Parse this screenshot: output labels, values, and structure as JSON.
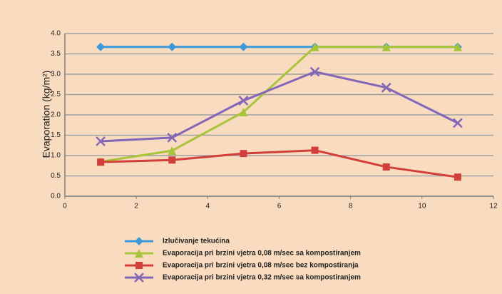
{
  "chart_data": {
    "type": "line",
    "ylabel": "Evaporation (kg/m²)",
    "x": [
      1,
      3,
      5,
      7,
      9,
      11
    ],
    "xlim": [
      0,
      12
    ],
    "xticks": [
      0,
      2,
      4,
      6,
      8,
      10,
      12
    ],
    "ylim": [
      0,
      4
    ],
    "yticks": [
      {
        "value": 0,
        "label": "0.0"
      },
      {
        "value": 0.5,
        "label": "0.5"
      },
      {
        "value": 1,
        "label": "1.0"
      },
      {
        "value": 1.5,
        "label": "1.5"
      },
      {
        "value": 2,
        "label": "2.0"
      },
      {
        "value": 2.5,
        "label": "2.5"
      },
      {
        "value": 3,
        "label": "3.0"
      },
      {
        "value": 3.5,
        "label": "3.5"
      },
      {
        "value": 4,
        "label": "4.0"
      }
    ],
    "grid": true,
    "legend": "bottom",
    "series": [
      {
        "name": "Izlučivanje tekućina",
        "color": "#3d9ad9",
        "marker": "diamond",
        "values": [
          3.67,
          3.67,
          3.67,
          3.67,
          3.67,
          3.67
        ]
      },
      {
        "name": "Evaporacija pri brzini vjetra 0,08 m/sec sa kompostiranjem",
        "color": "#a8c43a",
        "marker": "triangle",
        "values": [
          0.85,
          1.12,
          2.07,
          3.67,
          3.67,
          3.67
        ]
      },
      {
        "name": "Evaporacija pri brzini vjetra 0,08 m/sec bez kompostiranja",
        "color": "#d23f3a",
        "marker": "square",
        "values": [
          0.84,
          0.89,
          1.05,
          1.13,
          0.72,
          0.47
        ]
      },
      {
        "name": "Evaporacija pri brzini vjetra 0,32 m/sec sa kompostiranjem",
        "color": "#8466b8",
        "marker": "x",
        "values": [
          1.35,
          1.44,
          2.35,
          3.06,
          2.67,
          1.8
        ]
      }
    ]
  }
}
